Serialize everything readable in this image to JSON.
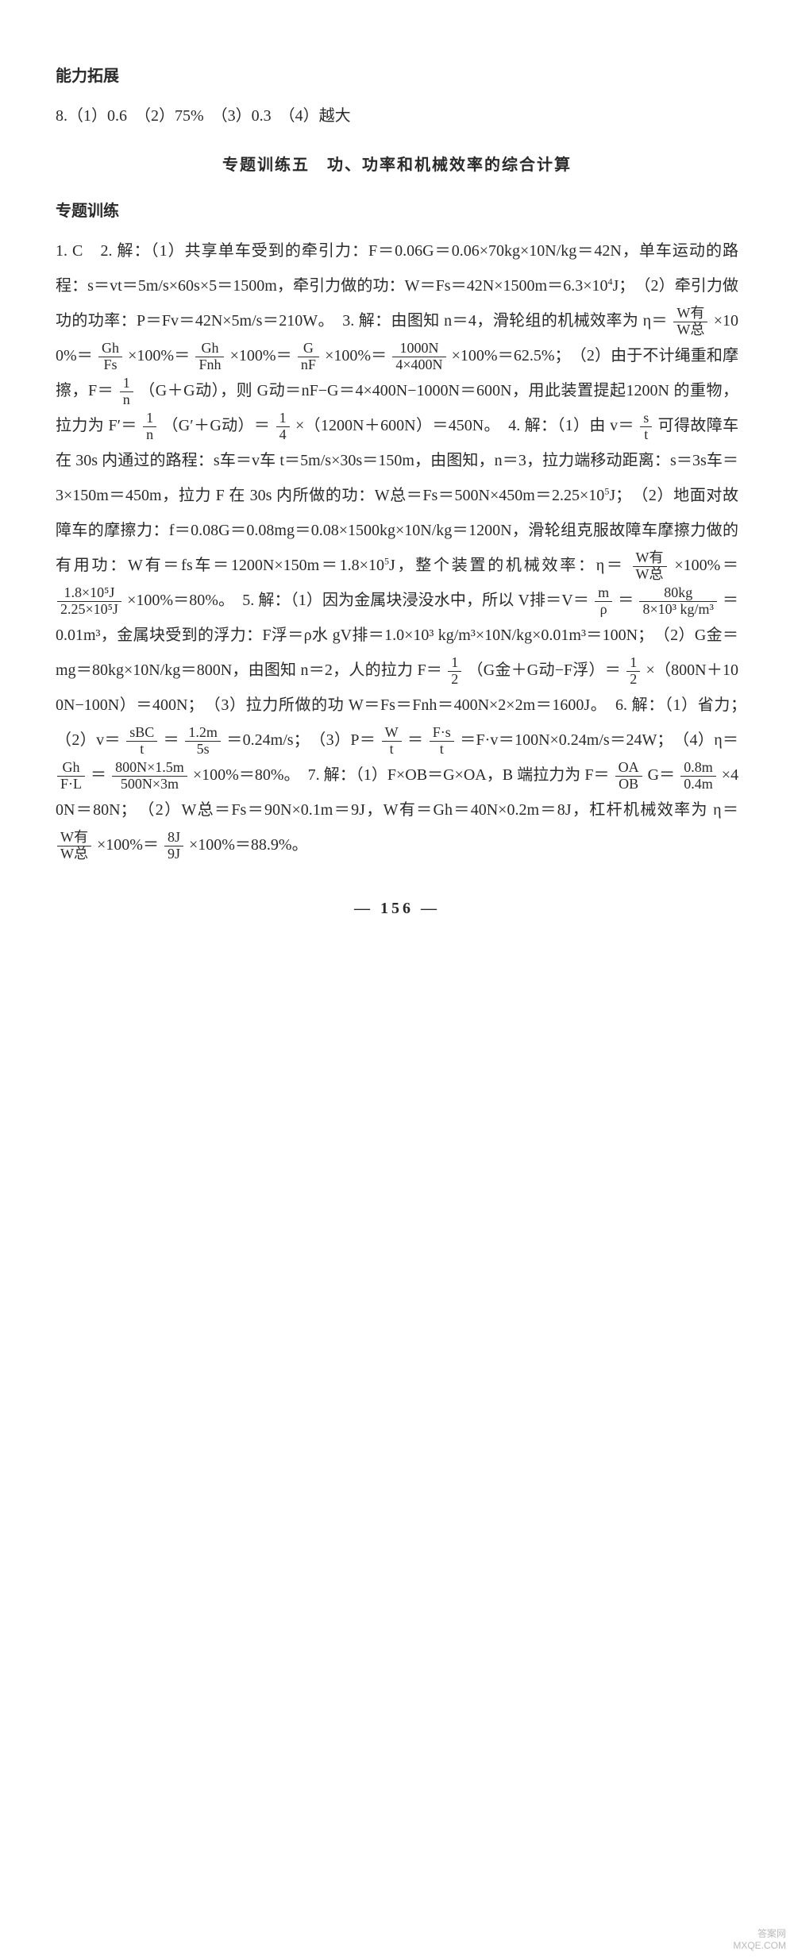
{
  "heading_ability": "能力拓展",
  "line_8": "8.（1）0.6　（2）75%　（3）0.3　（4）越大",
  "center_title": "专题训练五　功、功率和机械效率的综合计算",
  "heading_training": "专题训练",
  "sol_p1": "1. C　2. 解：（1）共享单车受到的牵引力：F＝0.06G＝0.06×70kg×10N/kg＝42N，单车运动的路程：s＝vt＝5m/s×60s×5＝1500m，牵引力做的功：W＝Fs＝42N×1500m＝6.3×10",
  "sol_p1_sup": "4",
  "sol_p1_b": "J；　（2）牵引力做功的功率：P＝Fv＝42N×5m/s＝210W。　3. 解：由图知 n＝4，滑轮组的机械效率为 η＝",
  "frac1_num": "W有",
  "frac1_den": "W总",
  "sol_p1_c": "×100%＝",
  "frac2_num": "Gh",
  "frac2_den": "Fs",
  "sol_p1_d": "×100%＝",
  "frac3_num": "Gh",
  "frac3_den": "Fnh",
  "sol_p1_e": "×100%＝",
  "frac4_num": "G",
  "frac4_den": "nF",
  "sol_p1_f": "×100%＝",
  "frac5_num": "1000N",
  "frac5_den": "4×400N",
  "sol_p1_g": "×100%＝62.5%；　（2）由于不计绳重和摩擦，F＝",
  "frac6_num": "1",
  "frac6_den": "n",
  "sol_p1_h": "（G＋G动），则 G动＝nF−G＝4×400N−1000N＝600N，用此装置提起1200N 的重物，拉力为 F′＝",
  "frac7_num": "1",
  "frac7_den": "n",
  "sol_p1_i": "（G′＋G动）＝",
  "frac8_num": "1",
  "frac8_den": "4",
  "sol_p1_j": "×（1200N＋600N）＝450N。　4. 解：（1）由 v＝",
  "frac9_num": "s",
  "frac9_den": "t",
  "sol_p1_k": "可得故障车在 30s 内通过的路程：s车＝v车 t＝5m/s×30s＝150m，由图知，n＝3，拉力端移动距离：s＝3s车＝3×150m＝450m，拉力 F 在 30s 内所做的功：W总＝Fs＝500N×450m＝2.25×10",
  "sol_p1_sup2": "5",
  "sol_p1_l": "J；　（2）地面对故障车的摩擦力：f＝0.08G＝0.08mg＝0.08×1500kg×10N/kg＝1200N，滑轮组克服故障车摩擦力做的有用功：W有＝fs车＝1200N×150m＝1.8×10",
  "sol_p1_sup3": "5",
  "sol_p1_m": "J，整个装置的机械效率：η＝",
  "frac10_num": "W有",
  "frac10_den": "W总",
  "sol_p1_n": "×100%＝",
  "frac11_num": "1.8×10⁵J",
  "frac11_den": "2.25×10⁵J",
  "sol_p1_o": "×100%＝80%。　5. 解：（1）因为金属块浸没水中，所以 V排＝V＝",
  "frac12_num": "m",
  "frac12_den": "ρ",
  "sol_p1_p": "＝",
  "frac13_num": "80kg",
  "frac13_den": "8×10³ kg/m³",
  "sol_p1_q": "＝0.01m³，金属块受到的浮力：F浮＝ρ水 gV排＝1.0×10³ kg/m³×10N/kg×0.01m³＝100N；　（2）G金＝mg＝80kg×10N/kg＝800N，由图知 n＝2，人的拉力 F＝",
  "frac14_num": "1",
  "frac14_den": "2",
  "sol_p1_r": "（G金＋G动−F浮）＝",
  "frac15_num": "1",
  "frac15_den": "2",
  "sol_p1_s": "×（800N＋100N−100N）＝400N；　（3）拉力所做的功 W＝Fs＝Fnh＝400N×2×2m＝1600J。　6. 解：（1）省力；　（2）v＝",
  "frac16_num": "sBC",
  "frac16_den": "t",
  "sol_p1_t": "＝",
  "frac17_num": "1.2m",
  "frac17_den": "5s",
  "sol_p1_u": "＝0.24m/s；　（3）P＝",
  "frac18_num": "W",
  "frac18_den": "t",
  "sol_p1_v": "＝",
  "frac19_num": "F·s",
  "frac19_den": "t",
  "sol_p1_w": "＝F·v＝100N×0.24m/s＝24W；　（4）η＝",
  "frac20_num": "Gh",
  "frac20_den": "F·L",
  "sol_p1_x": "＝",
  "frac21_num": "800N×1.5m",
  "frac21_den": "500N×3m",
  "sol_p1_y": "×100%＝80%。　7. 解：（1）F×OB＝G×OA，B 端拉力为 F＝",
  "frac22_num": "OA",
  "frac22_den": "OB",
  "sol_p1_z": "G＝",
  "frac23_num": "0.8m",
  "frac23_den": "0.4m",
  "sol_p1_aa": "×40N＝80N；　（2）W总＝Fs＝90N×0.1m＝9J，W有＝Gh＝40N×0.2m＝8J，杠杆机械效率为 η＝",
  "frac24_num": "W有",
  "frac24_den": "W总",
  "sol_p1_ab": "×100%＝",
  "frac25_num": "8J",
  "frac25_den": "9J",
  "sol_p1_ac": "×100%＝88.9%。",
  "pagenum": "— 156 —",
  "watermark1": "答案网",
  "watermark2": "MXQE.COM"
}
